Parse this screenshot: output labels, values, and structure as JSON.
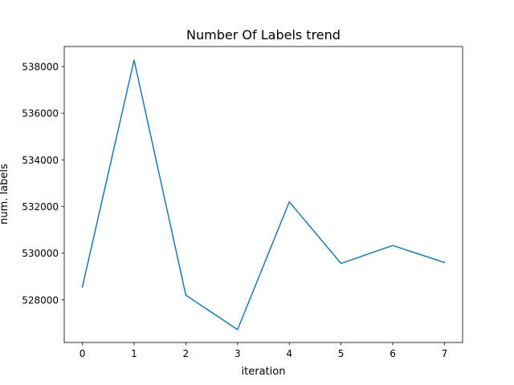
{
  "chart_data": {
    "type": "line",
    "title": "Number Of Labels trend",
    "xlabel": "iteration",
    "ylabel": "num. labels",
    "x": [
      0,
      1,
      2,
      3,
      4,
      5,
      6,
      7
    ],
    "series": [
      {
        "color": "#1f77b4",
        "values": [
          528550,
          538280,
          528200,
          526720,
          532200,
          529560,
          530330,
          529600
        ]
      }
    ],
    "xlim": [
      -0.35,
      7.35
    ],
    "ylim": [
      526170,
      538860
    ],
    "xticks": [
      0,
      1,
      2,
      3,
      4,
      5,
      6,
      7
    ],
    "yticks": [
      528000,
      530000,
      532000,
      534000,
      536000,
      538000
    ],
    "grid": false,
    "legend": "none"
  }
}
